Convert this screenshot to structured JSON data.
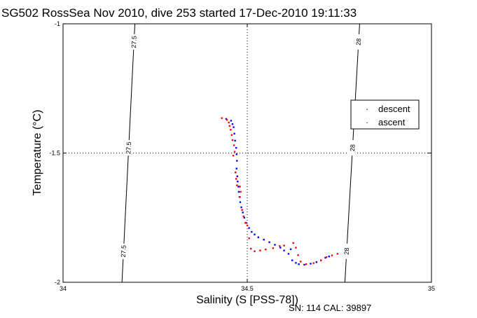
{
  "chart_data": {
    "type": "scatter",
    "title": "SG502 RossSea Nov 2010, dive 253 started 17-Dec-2010 19:11:33",
    "xlabel": "Salinity (S [PSS-78])",
    "ylabel": "Temperature (°C)",
    "xlim": [
      34,
      35
    ],
    "ylim": [
      -2,
      -1
    ],
    "x_ticks": [
      "34",
      "34.5",
      "35"
    ],
    "y_ticks": [
      "-1",
      "-1.5",
      "-2"
    ],
    "grid": "dotted lines at 34.5 and -1.5",
    "legend_position": "right",
    "isopycnals": [
      {
        "label": "27.5",
        "x_top": 34.195,
        "x_bottom": 34.16
      },
      {
        "label": "28",
        "x_top": 34.805,
        "x_bottom": 34.765
      }
    ],
    "series": [
      {
        "name": "descent",
        "color": "#0000ff",
        "points": [
          [
            34.443,
            -1.368
          ],
          [
            34.456,
            -1.375
          ],
          [
            34.46,
            -1.388
          ],
          [
            34.463,
            -1.4
          ],
          [
            34.465,
            -1.425
          ],
          [
            34.467,
            -1.452
          ],
          [
            34.47,
            -1.48
          ],
          [
            34.471,
            -1.505
          ],
          [
            34.472,
            -1.53
          ],
          [
            34.471,
            -1.56
          ],
          [
            34.473,
            -1.59
          ],
          [
            34.474,
            -1.61
          ],
          [
            34.476,
            -1.63
          ],
          [
            34.477,
            -1.65
          ],
          [
            34.479,
            -1.67
          ],
          [
            34.481,
            -1.69
          ],
          [
            34.484,
            -1.71
          ],
          [
            34.488,
            -1.73
          ],
          [
            34.492,
            -1.75
          ],
          [
            34.497,
            -1.77
          ],
          [
            34.505,
            -1.79
          ],
          [
            34.512,
            -1.805
          ],
          [
            34.52,
            -1.815
          ],
          [
            34.53,
            -1.826
          ],
          [
            34.545,
            -1.835
          ],
          [
            34.56,
            -1.845
          ],
          [
            34.575,
            -1.855
          ],
          [
            34.59,
            -1.866
          ],
          [
            34.6,
            -1.877
          ],
          [
            34.612,
            -1.89
          ],
          [
            34.618,
            -1.872
          ],
          [
            34.622,
            -1.915
          ],
          [
            34.632,
            -1.925
          ],
          [
            34.64,
            -1.93
          ],
          [
            34.655,
            -1.932
          ],
          [
            34.672,
            -1.928
          ],
          [
            34.688,
            -1.922
          ],
          [
            34.7,
            -1.915
          ],
          [
            34.712,
            -1.905
          ],
          [
            34.722,
            -1.9
          ]
        ]
      },
      {
        "name": "ascent",
        "color": "#ff0000",
        "points": [
          [
            34.431,
            -1.365
          ],
          [
            34.445,
            -1.372
          ],
          [
            34.45,
            -1.382
          ],
          [
            34.452,
            -1.395
          ],
          [
            34.455,
            -1.41
          ],
          [
            34.458,
            -1.43
          ],
          [
            34.46,
            -1.45
          ],
          [
            34.464,
            -1.47
          ],
          [
            34.466,
            -1.495
          ],
          [
            34.462,
            -1.51
          ],
          [
            34.468,
            -1.575
          ],
          [
            34.47,
            -1.6
          ],
          [
            34.472,
            -1.625
          ],
          [
            34.48,
            -1.63
          ],
          [
            34.482,
            -1.65
          ],
          [
            34.48,
            -1.67
          ],
          [
            34.486,
            -1.72
          ],
          [
            34.49,
            -1.745
          ],
          [
            34.495,
            -1.77
          ],
          [
            34.5,
            -1.78
          ],
          [
            34.505,
            -1.83
          ],
          [
            34.51,
            -1.87
          ],
          [
            34.52,
            -1.88
          ],
          [
            34.535,
            -1.877
          ],
          [
            34.55,
            -1.873
          ],
          [
            34.57,
            -1.868
          ],
          [
            34.588,
            -1.86
          ],
          [
            34.6,
            -1.858
          ],
          [
            34.625,
            -1.848
          ],
          [
            34.632,
            -1.866
          ],
          [
            34.638,
            -1.895
          ],
          [
            34.645,
            -1.92
          ],
          [
            34.66,
            -1.93
          ],
          [
            34.68,
            -1.926
          ],
          [
            34.7,
            -1.915
          ],
          [
            34.715,
            -1.903
          ],
          [
            34.73,
            -1.896
          ],
          [
            34.745,
            -1.89
          ]
        ]
      }
    ]
  },
  "footer": "SN: 114  CAL: 39897"
}
